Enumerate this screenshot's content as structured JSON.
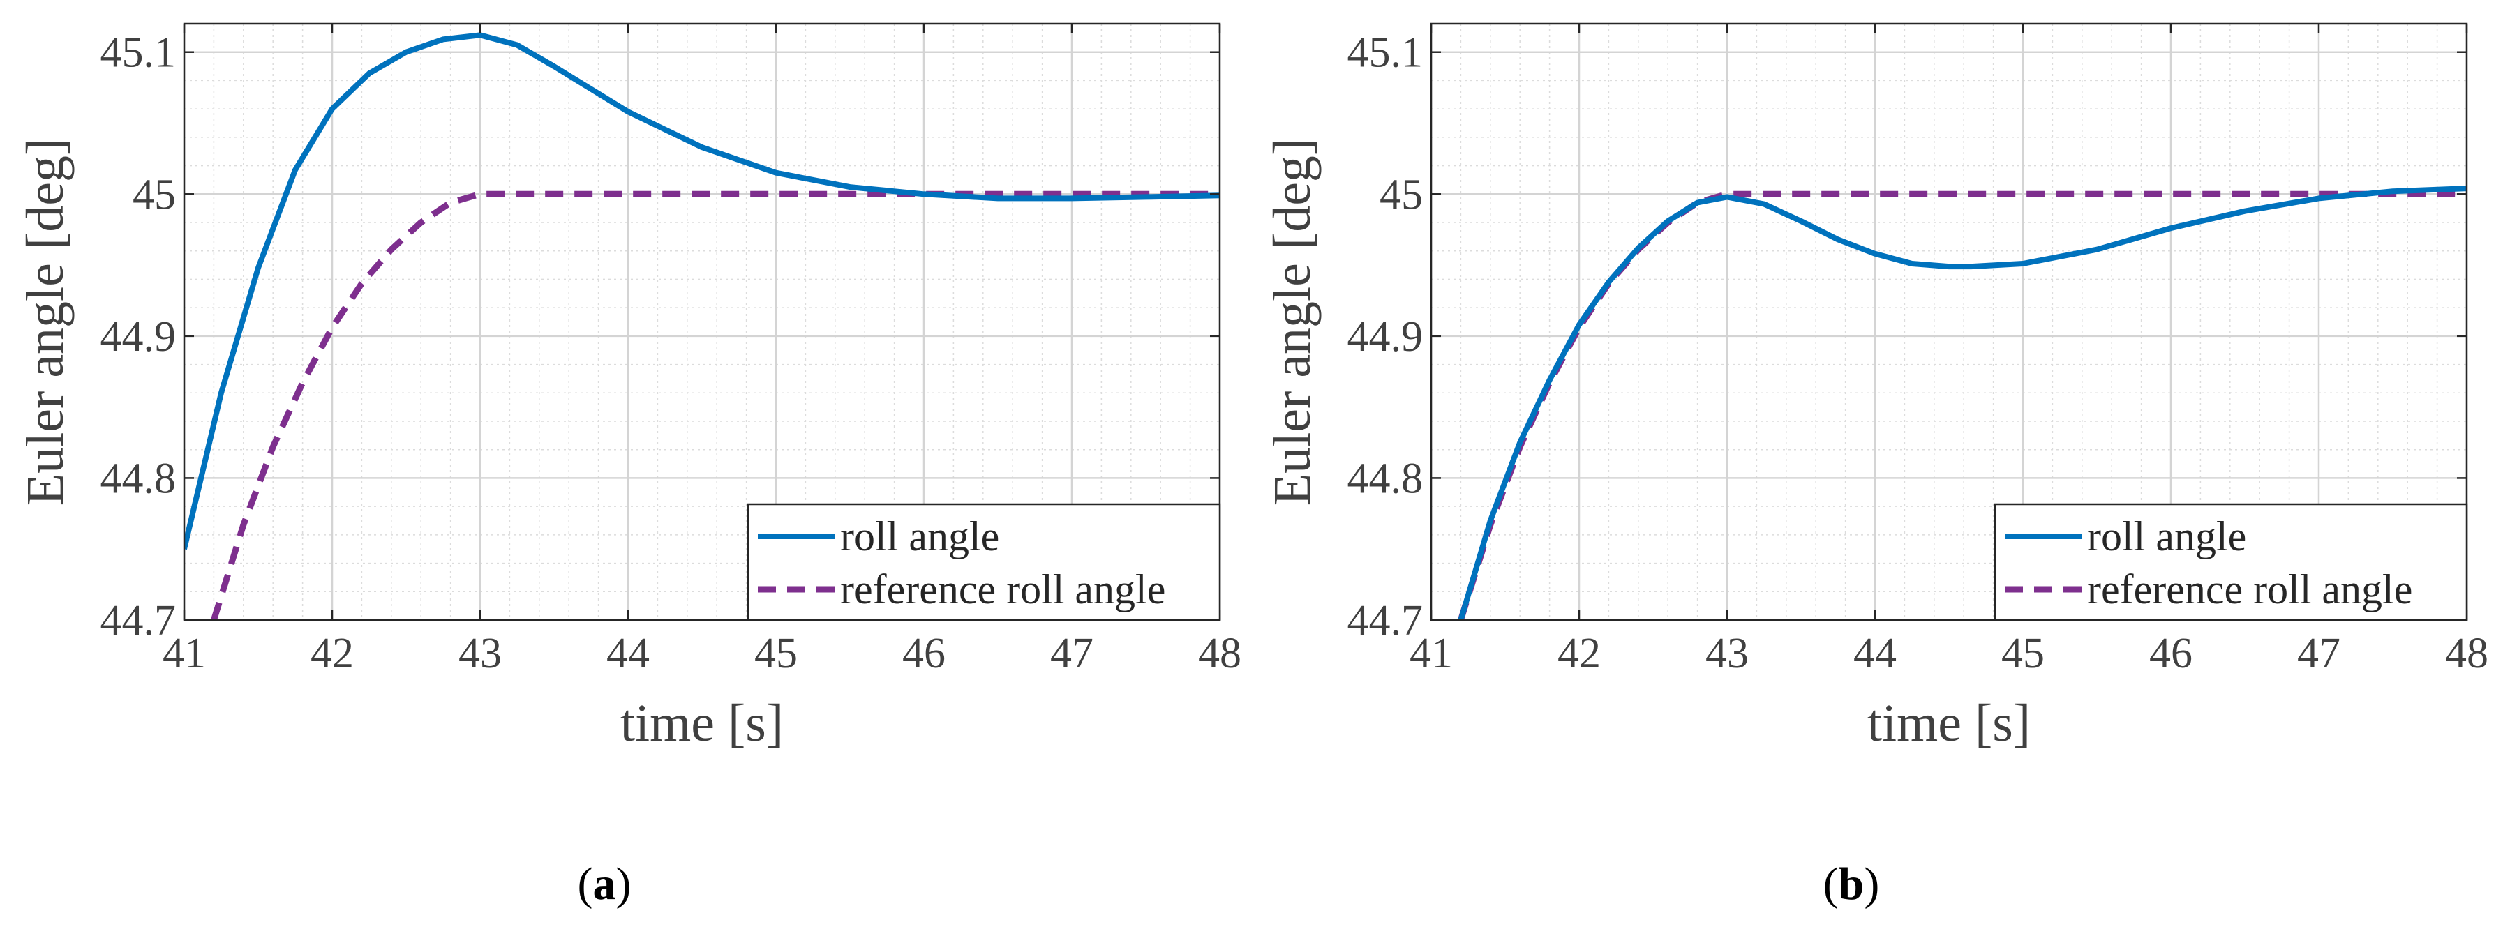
{
  "chart_data": [
    {
      "type": "line",
      "panel_label": "a",
      "xlabel": "time [s]",
      "ylabel": "Euler angle [deg]",
      "xlim": [
        41,
        48
      ],
      "ylim": [
        44.7,
        45.12
      ],
      "xticks": [
        41,
        42,
        43,
        44,
        45,
        46,
        47,
        48
      ],
      "xtick_labels": [
        "41",
        "42",
        "43",
        "44",
        "45",
        "46",
        "47",
        "48"
      ],
      "yticks": [
        44.7,
        44.8,
        44.9,
        45,
        45.1
      ],
      "ytick_labels": [
        "44.7",
        "44.8",
        "44.9",
        "45",
        "45.1"
      ],
      "grid": true,
      "minor_grid": true,
      "legend_position": "bottom-right",
      "series": [
        {
          "name": "roll angle",
          "style": "solid",
          "color": "#0072bd",
          "x": [
            41.0,
            41.25,
            41.5,
            41.75,
            42.0,
            42.25,
            42.5,
            42.75,
            43.0,
            43.25,
            43.5,
            43.75,
            44.0,
            44.5,
            45.0,
            45.5,
            46.0,
            46.5,
            47.0,
            47.5,
            48.0
          ],
          "y": [
            44.75,
            44.86,
            44.948,
            45.017,
            45.06,
            45.085,
            45.1,
            45.109,
            45.112,
            45.105,
            45.09,
            45.074,
            45.058,
            45.033,
            45.015,
            45.005,
            45.0,
            44.997,
            44.997,
            44.998,
            44.999
          ]
        },
        {
          "name": "reference roll angle",
          "style": "dashed",
          "color": "#7e2f8e",
          "x": [
            41.2,
            41.4,
            41.6,
            41.8,
            42.0,
            42.2,
            42.4,
            42.6,
            42.8,
            43.0,
            44.0,
            45.0,
            46.0,
            47.0,
            48.0
          ],
          "y": [
            44.7,
            44.767,
            44.822,
            44.867,
            44.906,
            44.937,
            44.961,
            44.98,
            44.994,
            45.0,
            45.0,
            45.0,
            45.0,
            45.0,
            45.0
          ]
        }
      ]
    },
    {
      "type": "line",
      "panel_label": "b",
      "xlabel": "time [s]",
      "ylabel": "Euler angle [deg]",
      "xlim": [
        41,
        48
      ],
      "ylim": [
        44.7,
        45.12
      ],
      "xticks": [
        41,
        42,
        43,
        44,
        45,
        46,
        47,
        48
      ],
      "xtick_labels": [
        "41",
        "42",
        "43",
        "44",
        "45",
        "46",
        "47",
        "48"
      ],
      "yticks": [
        44.7,
        44.8,
        44.9,
        45,
        45.1
      ],
      "ytick_labels": [
        "44.7",
        "44.8",
        "44.9",
        "45",
        "45.1"
      ],
      "grid": true,
      "minor_grid": true,
      "legend_position": "bottom-right",
      "series": [
        {
          "name": "roll angle",
          "style": "solid",
          "color": "#0072bd",
          "x": [
            41.2,
            41.4,
            41.6,
            41.8,
            42.0,
            42.2,
            42.4,
            42.6,
            42.8,
            43.0,
            43.25,
            43.5,
            43.75,
            44.0,
            44.25,
            44.5,
            44.65,
            45.0,
            45.5,
            46.0,
            46.5,
            47.0,
            47.5,
            48.0
          ],
          "y": [
            44.7,
            44.77,
            44.825,
            44.869,
            44.908,
            44.938,
            44.962,
            44.981,
            44.994,
            44.998,
            44.993,
            44.981,
            44.968,
            44.958,
            44.951,
            44.949,
            44.949,
            44.951,
            44.961,
            44.976,
            44.988,
            44.997,
            45.002,
            45.004
          ]
        },
        {
          "name": "reference roll angle",
          "style": "dashed",
          "color": "#7e2f8e",
          "x": [
            41.2,
            41.4,
            41.6,
            41.8,
            42.0,
            42.2,
            42.4,
            42.6,
            42.8,
            43.0,
            44.0,
            45.0,
            46.0,
            47.0,
            48.0
          ],
          "y": [
            44.7,
            44.767,
            44.822,
            44.867,
            44.906,
            44.937,
            44.961,
            44.98,
            44.994,
            45.0,
            45.0,
            45.0,
            45.0,
            45.0,
            45.0
          ]
        }
      ]
    }
  ]
}
